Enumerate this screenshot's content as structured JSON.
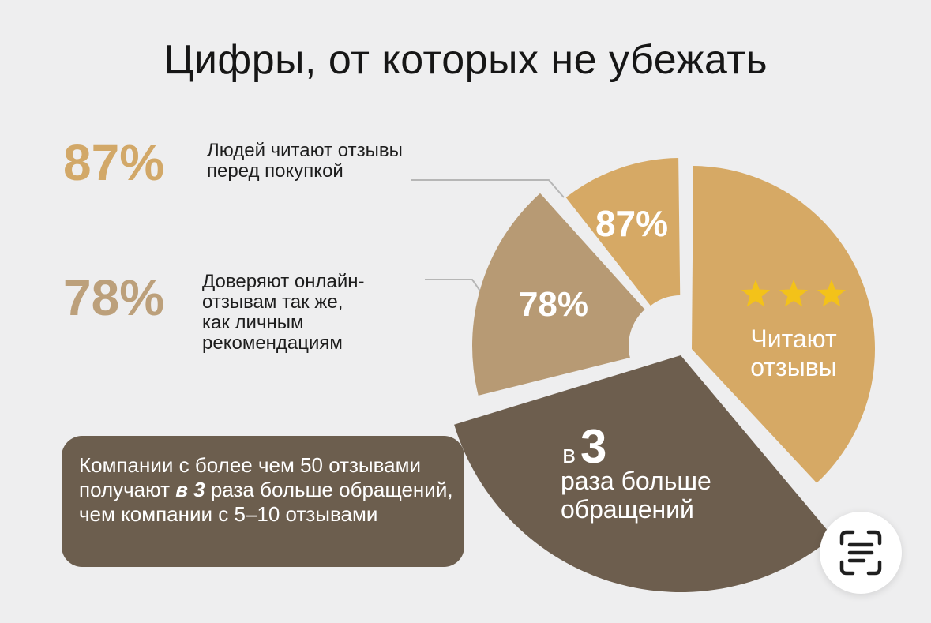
{
  "title": "Цифры, от которых не убежать",
  "stats": [
    {
      "value": "87%",
      "text": "Людей читают отзывы\nперед покупкой"
    },
    {
      "value": "78%",
      "text": "Доверяют онлайн-\nотзывам так же,\nкак личным\nрекомендациям"
    }
  ],
  "note": {
    "part1": "Компании с более чем 50 отзывами получают ",
    "emph": "в 3",
    "part2": " раза больше обращений, чем компании с 5–10 отзывами"
  },
  "chart_data": {
    "type": "pie",
    "style": "donut, exploded segments",
    "slices": [
      {
        "label": "87%",
        "value": 87,
        "color": "#d6a965"
      },
      {
        "label": "78%",
        "value": 78,
        "color": "#b79a74"
      },
      {
        "label": "",
        "value": 100,
        "color": "#d6a965",
        "caption": "Читают отзывы",
        "stars": 3
      },
      {
        "label": "",
        "value": 100,
        "color": "#6d5e4e",
        "caption_prefix": "в",
        "caption_number": "3",
        "caption": "раза больше обращений"
      }
    ],
    "star_color": "#f3c219"
  },
  "scan_button": {
    "icon": "text-scan-icon"
  }
}
